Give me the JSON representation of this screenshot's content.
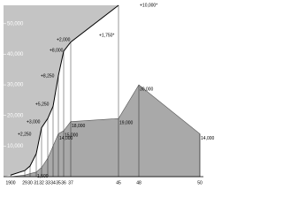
{
  "chart_data": {
    "type": "area",
    "categories": [
      "1900",
      "29",
      "30",
      "31",
      "32",
      "33",
      "34",
      "35",
      "36",
      "37",
      "45",
      "48",
      "50"
    ],
    "series": [
      {
        "color": "#000000",
        "values": [
          500,
          2000,
          3500,
          7500,
          16000,
          19000,
          23000,
          33000,
          41000,
          44000,
          56000,
          null,
          null
        ]
      },
      {
        "color": "#a9a9a9",
        "values": [
          0,
          500,
          1000,
          1500,
          3000,
          6000,
          10000,
          14000,
          15000,
          18000,
          19000,
          30000,
          14000
        ],
        "value_labels": [
          null,
          null,
          null,
          "1,500",
          null,
          null,
          null,
          "14,000",
          "15,000",
          "18,000",
          "19,000",
          "30,000",
          "14,000"
        ]
      }
    ],
    "annotations": [
      "+10,000*",
      "+1,750*",
      "+2,000",
      "+8,000",
      "+8,250",
      "+5,250",
      "+3,000",
      "+2,250"
    ],
    "ylim": [
      0,
      56000
    ],
    "yticks": [
      {
        "value": 10000,
        "label": "10,000"
      },
      {
        "value": 20000,
        "label": "20,000"
      },
      {
        "value": 30000,
        "label": "30,000"
      },
      {
        "value": 40000,
        "label": "40,000"
      },
      {
        "value": 50000,
        "label": "50,000"
      }
    ]
  }
}
